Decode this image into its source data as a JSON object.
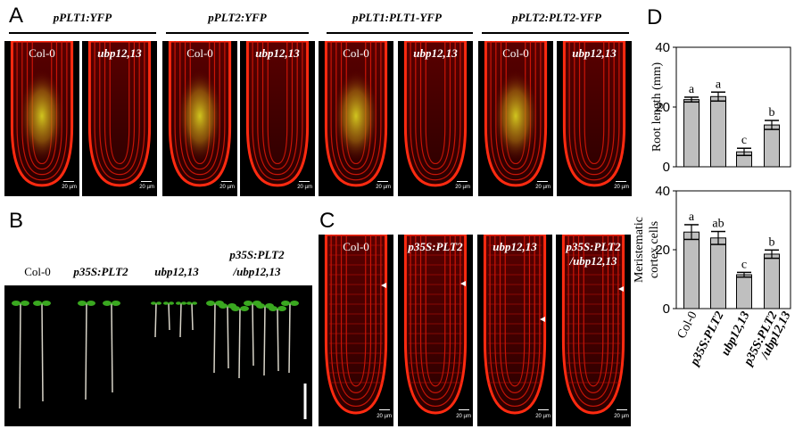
{
  "panels": {
    "A": {
      "letter": "A",
      "constructs": [
        "pPLT1:YFP",
        "pPLT2:YFP",
        "pPLT1:PLT1-YFP",
        "pPLT2:PLT2-YFP"
      ],
      "genotypes": [
        "Col-0",
        "ubp12,13",
        "Col-0",
        "ubp12,13",
        "Col-0",
        "ubp12,13",
        "Col-0",
        "ubp12,13"
      ],
      "scale_labels": [
        "20 µm",
        "20 µm",
        "20 µm",
        "20 µm",
        "20 µm",
        "20 µm",
        "20 µm",
        "20 µm"
      ]
    },
    "B": {
      "letter": "B",
      "genotypes": [
        "Col-0",
        "p35S:PLT2",
        "ubp12,13",
        "p35S:PLT2",
        "/ubp12,13"
      ]
    },
    "C": {
      "letter": "C",
      "genotypes": [
        "Col-0",
        "p35S:PLT2",
        "ubp12,13",
        "p35S:PLT2",
        "/ubp12,13"
      ],
      "scale_labels": [
        "20 µm",
        "20 µm",
        "20 µm",
        "20 µm"
      ]
    },
    "D": {
      "letter": "D"
    }
  },
  "chart_data": [
    {
      "type": "bar",
      "categories": [
        "Col-0",
        "p35S:PLT2",
        "ubp12,13",
        "p35S:PLT2/ubp12,13"
      ],
      "category_labels": [
        [
          "Col-0"
        ],
        [
          "p35S:PLT2"
        ],
        [
          "ubp12,13"
        ],
        [
          "p35S:PLT2",
          "/ubp12,13"
        ]
      ],
      "values": [
        22.5,
        23.5,
        5,
        14
      ],
      "errors": [
        0.8,
        1.5,
        1.2,
        1.5
      ],
      "letters": [
        "a",
        "a",
        "c",
        "b"
      ],
      "ylabel": "Root length (mm)",
      "ylim": [
        0,
        40
      ],
      "yticks": [
        0,
        20,
        40
      ],
      "bar_color": "#bfbfbf"
    },
    {
      "type": "bar",
      "categories": [
        "Col-0",
        "p35S:PLT2",
        "ubp12,13",
        "p35S:PLT2/ubp12,13"
      ],
      "values": [
        26,
        24,
        11.5,
        18.5
      ],
      "errors": [
        2.5,
        2.2,
        0.8,
        1.4
      ],
      "letters": [
        "a",
        "ab",
        "c",
        "b"
      ],
      "ylabel_lines": [
        "Meristematic",
        "cortex cells"
      ],
      "ylim": [
        0,
        40
      ],
      "yticks": [
        0,
        20,
        40
      ],
      "bar_color": "#bfbfbf"
    }
  ]
}
